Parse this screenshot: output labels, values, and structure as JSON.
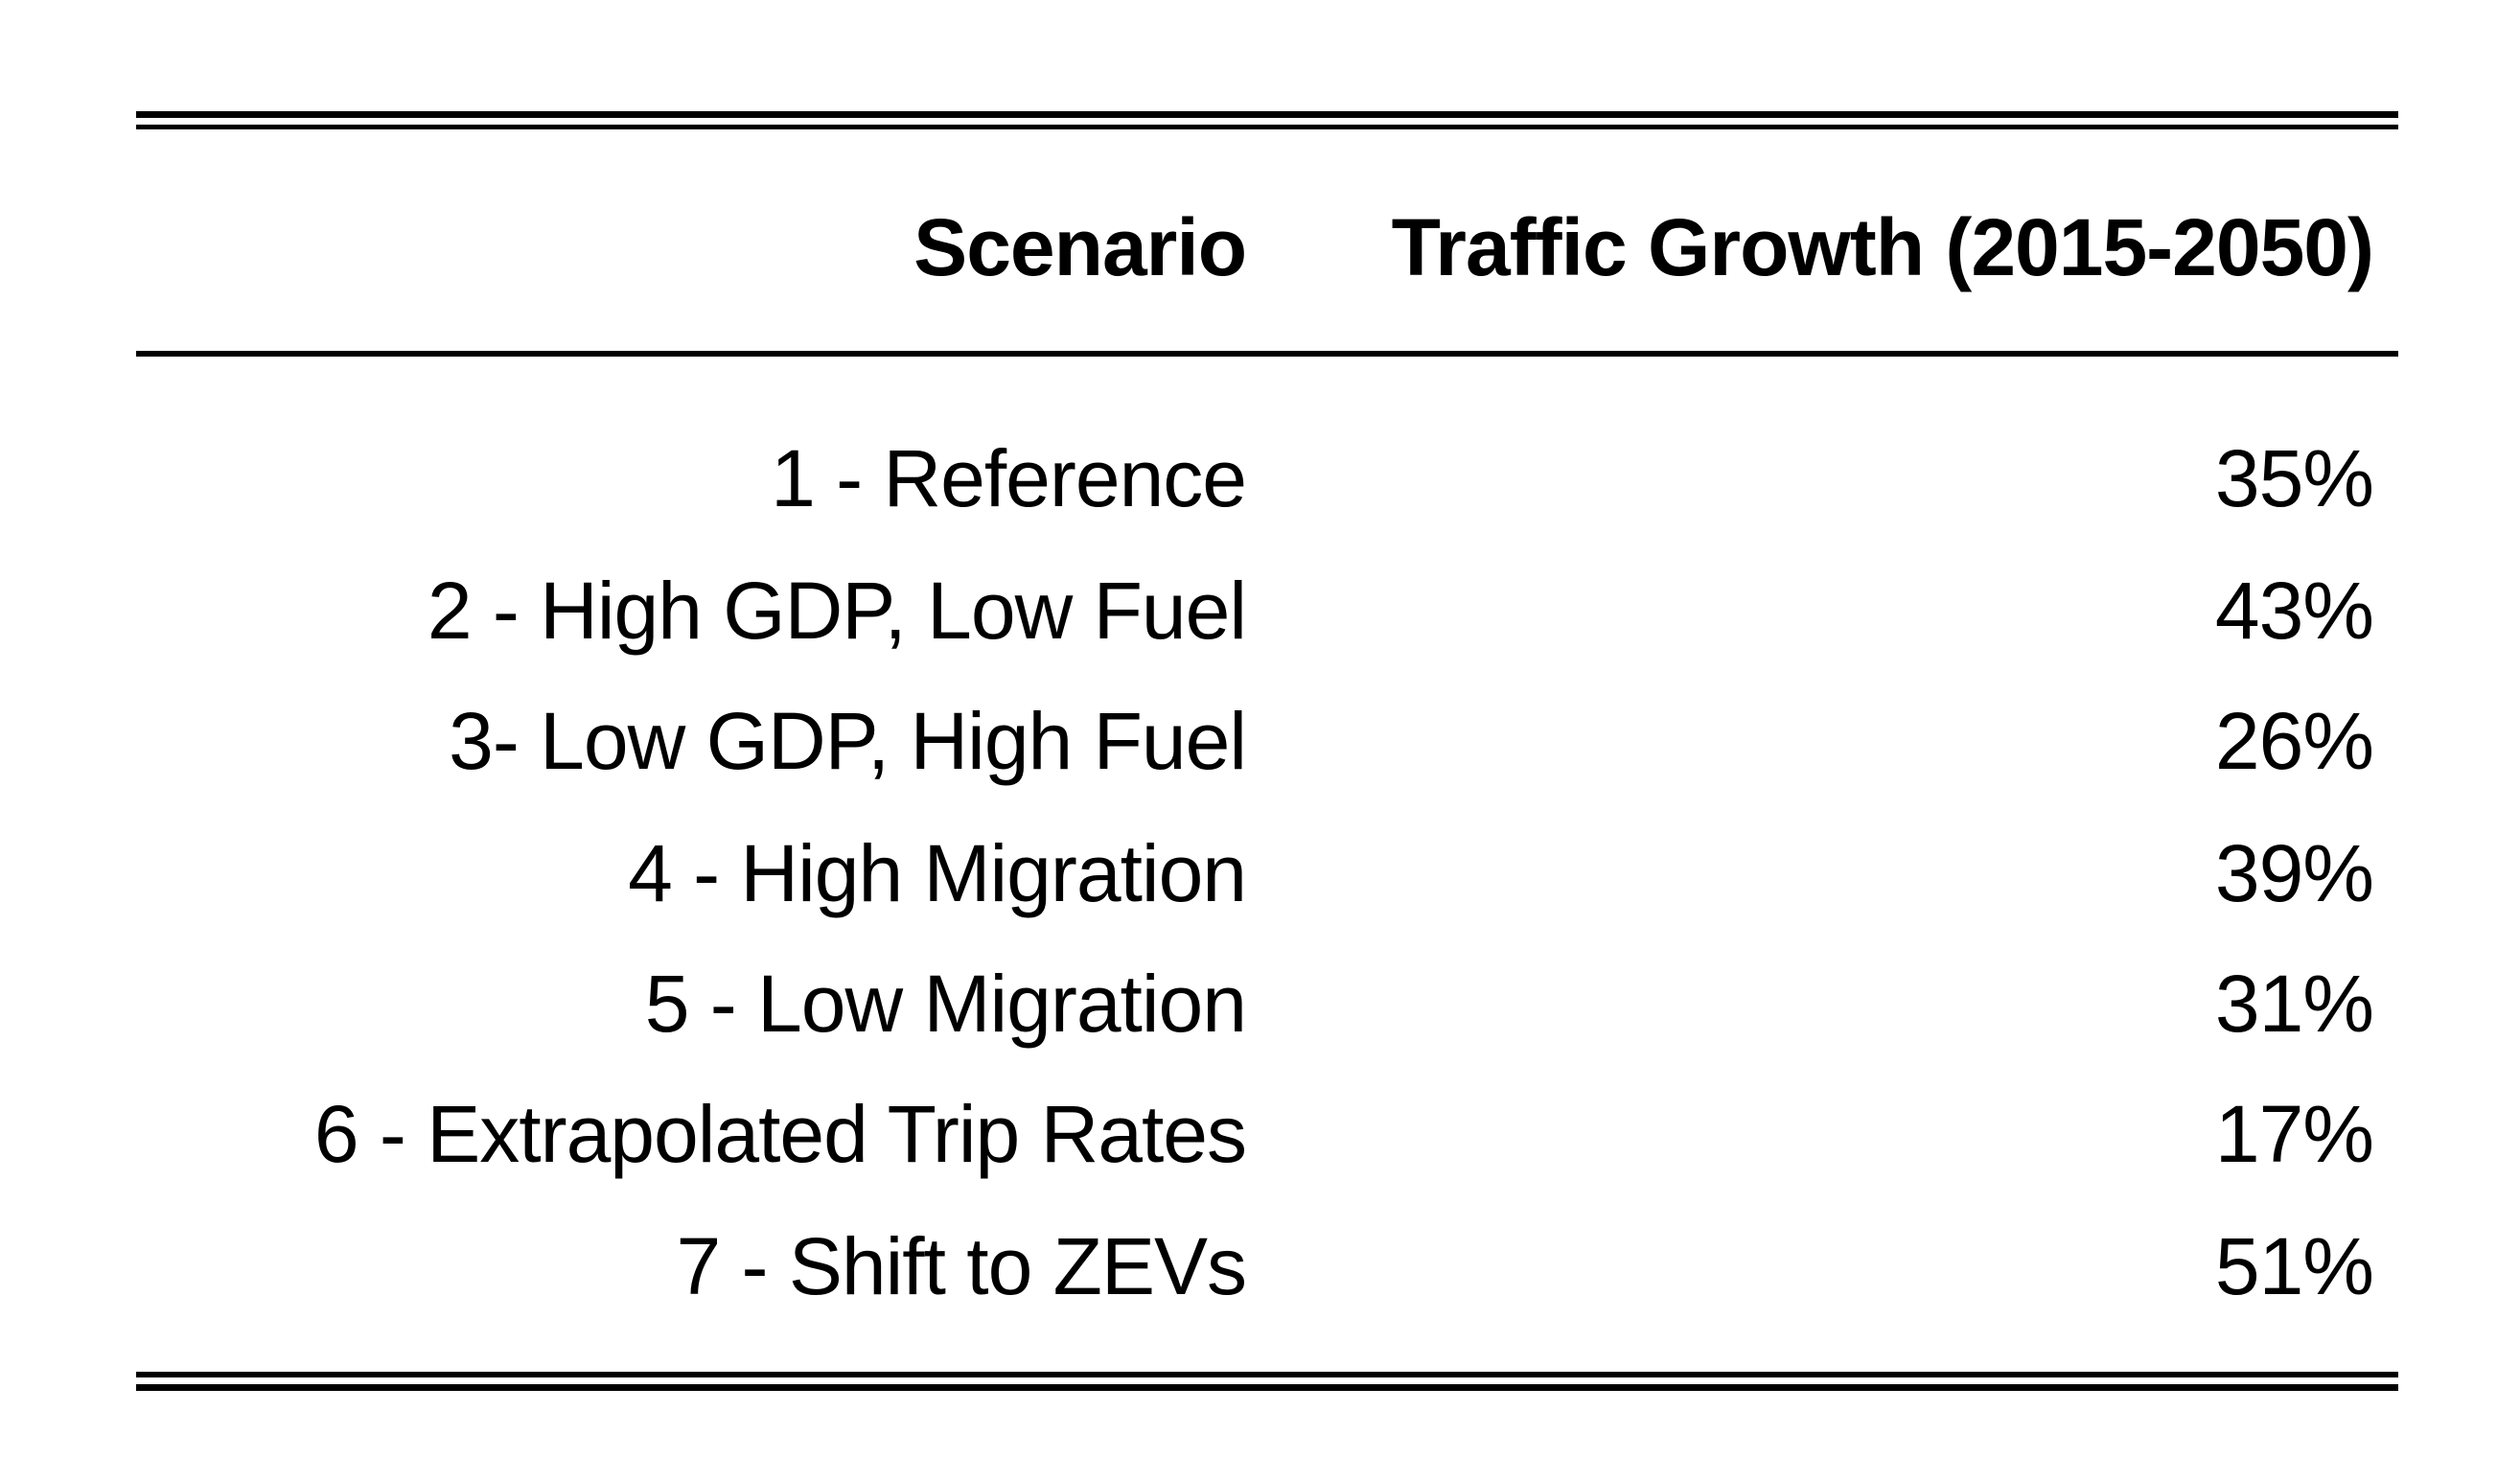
{
  "table": {
    "headers": {
      "scenario": "Scenario",
      "growth": "Traffic Growth (2015-2050)"
    },
    "rows": [
      {
        "scenario": "1 - Reference",
        "growth": "35%"
      },
      {
        "scenario": "2 - High GDP, Low Fuel",
        "growth": "43%"
      },
      {
        "scenario": "3- Low GDP, High Fuel",
        "growth": "26%"
      },
      {
        "scenario": "4 - High Migration",
        "growth": "39%"
      },
      {
        "scenario": "5 - Low Migration",
        "growth": "31%"
      },
      {
        "scenario": "6 - Extrapolated Trip Rates",
        "growth": "17%"
      },
      {
        "scenario": "7 - Shift to ZEVs",
        "growth": "51%"
      }
    ]
  }
}
